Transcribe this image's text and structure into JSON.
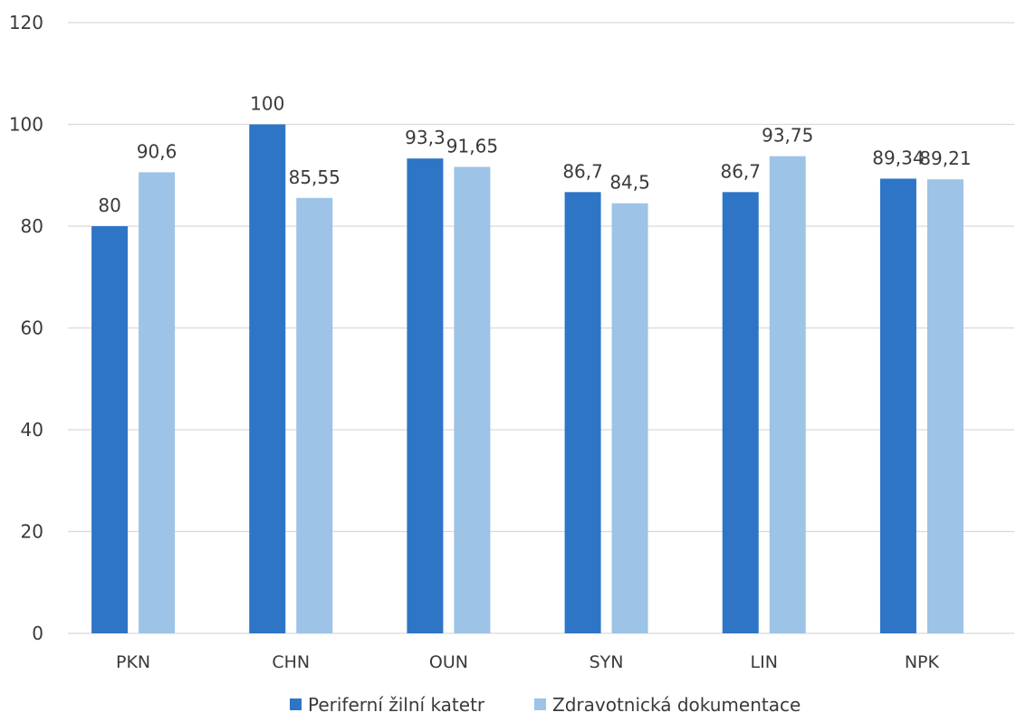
{
  "chart_data": {
    "type": "bar",
    "categories": [
      "PKN",
      "CHN",
      "OUN",
      "SYN",
      "LIN",
      "NPK"
    ],
    "series": [
      {
        "name": "Periferní žilní katetr",
        "color": "#2e75c6",
        "values": [
          80,
          100,
          93.3,
          86.7,
          86.7,
          89.34
        ],
        "labels": [
          "80",
          "100",
          "93,3",
          "86,7",
          "86,7",
          "89,34"
        ]
      },
      {
        "name": "Zdravotnická dokumentace",
        "color": "#9dc3e6",
        "values": [
          90.6,
          85.55,
          91.65,
          84.5,
          93.75,
          89.21
        ],
        "labels": [
          "90,6",
          "85,55",
          "91,65",
          "84,5",
          "93,75",
          "89,21"
        ]
      }
    ],
    "ylim": [
      0,
      120
    ],
    "yticks": [
      0,
      20,
      40,
      60,
      80,
      100,
      120
    ],
    "grid": true,
    "legend": "bottom",
    "title": "",
    "xlabel": "",
    "ylabel": ""
  }
}
